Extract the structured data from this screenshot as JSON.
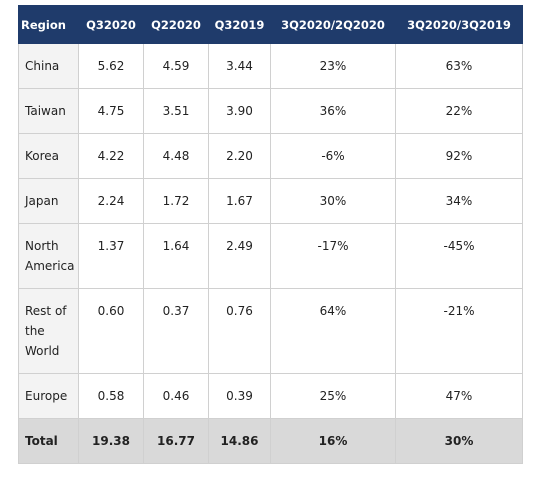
{
  "table": {
    "header": [
      "Region",
      "Q32020",
      "Q22020",
      "Q32019",
      "3Q2020/2Q2020",
      "3Q2020/3Q2019"
    ],
    "rows": [
      [
        "China",
        "5.62",
        "4.59",
        "3.44",
        "23%",
        "63%"
      ],
      [
        "Taiwan",
        "4.75",
        "3.51",
        "3.90",
        "36%",
        "22%"
      ],
      [
        "Korea",
        "4.22",
        "4.48",
        "2.20",
        "-6%",
        "92%"
      ],
      [
        "Japan",
        "2.24",
        "1.72",
        "1.67",
        "30%",
        "34%"
      ],
      [
        "North America",
        "1.37",
        "1.64",
        "2.49",
        "-17%",
        "-45%"
      ],
      [
        "Rest of the World",
        "0.60",
        "0.37",
        "0.76",
        "64%",
        "-21%"
      ],
      [
        "Europe",
        "0.58",
        "0.46",
        "0.39",
        "25%",
        "47%"
      ]
    ],
    "total": [
      "Total",
      "19.38",
      "16.77",
      "14.86",
      "16%",
      "30%"
    ]
  }
}
